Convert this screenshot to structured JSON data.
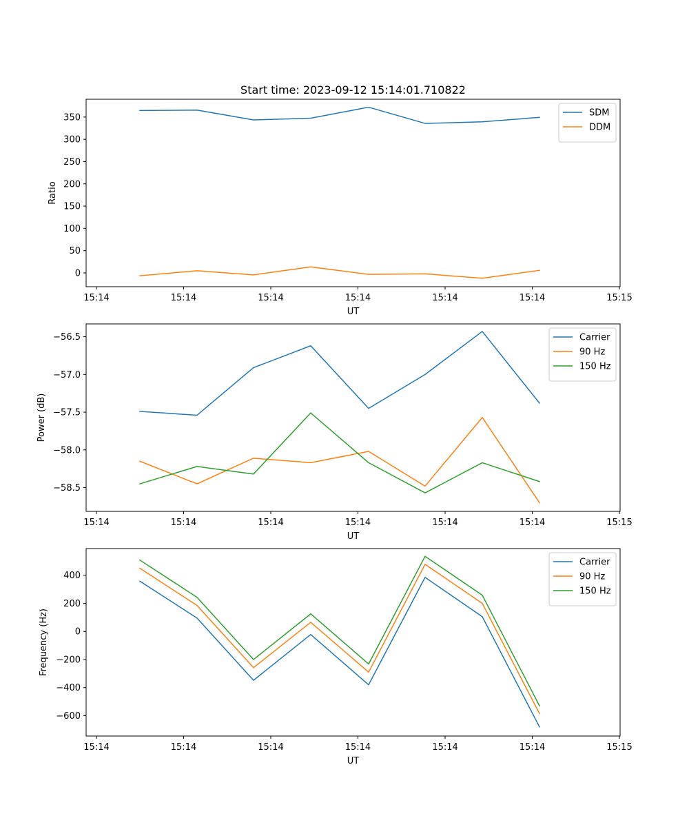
{
  "title": "Start time: 2023-09-12 15:14:01.710822",
  "chart_data": [
    {
      "type": "line",
      "title": "Start time: 2023-09-12 15:14:01.710822",
      "xlabel": "UT",
      "ylabel": "Ratio",
      "x_ticks": [
        "15:14",
        "15:14",
        "15:14",
        "15:14",
        "15:14",
        "15:14",
        "15:15"
      ],
      "y_ticks": [
        "0",
        "50",
        "100",
        "150",
        "200",
        "250",
        "300",
        "350"
      ],
      "ylim": [
        -31,
        390
      ],
      "y_tick_values": [
        0,
        50,
        100,
        150,
        200,
        250,
        300,
        350
      ],
      "series": [
        {
          "name": "SDM",
          "color": "#1f77b4",
          "values": [
            364.6,
            365.6,
            343.6,
            347.4,
            372.1,
            335.7,
            339.3,
            349.3
          ]
        },
        {
          "name": "DDM",
          "color": "#ff7f0e",
          "values": [
            -6.4,
            4.8,
            -4.5,
            13.5,
            -3.3,
            -2.1,
            -12.0,
            5.7
          ]
        }
      ]
    },
    {
      "type": "line",
      "title": "",
      "xlabel": "UT",
      "ylabel": "Power (dB)",
      "x_ticks": [
        "15:14",
        "15:14",
        "15:14",
        "15:14",
        "15:14",
        "15:14",
        "15:15"
      ],
      "y_ticks": [
        "−58.5",
        "−58.0",
        "−57.5",
        "−57.0",
        "−56.5"
      ],
      "ylim": [
        -58.815,
        -56.33
      ],
      "y_tick_values": [
        -58.5,
        -58.0,
        -57.5,
        -57.0,
        -56.5
      ],
      "series": [
        {
          "name": "Carrier",
          "color": "#1f77b4",
          "values": [
            -57.49,
            -57.54,
            -56.91,
            -56.62,
            -57.45,
            -57.0,
            -56.43,
            -57.38
          ]
        },
        {
          "name": "90 Hz",
          "color": "#ff7f0e",
          "values": [
            -58.15,
            -58.45,
            -58.11,
            -58.17,
            -58.02,
            -58.48,
            -57.57,
            -58.7
          ]
        },
        {
          "name": "150 Hz",
          "color": "#2ca02c",
          "values": [
            -58.45,
            -58.22,
            -58.32,
            -57.51,
            -58.17,
            -58.57,
            -58.17,
            -58.42
          ]
        }
      ]
    },
    {
      "type": "line",
      "title": "",
      "xlabel": "UT",
      "ylabel": "Frequency (Hz)",
      "x_ticks": [
        "15:14",
        "15:14",
        "15:14",
        "15:14",
        "15:14",
        "15:14",
        "15:15"
      ],
      "y_ticks": [
        "−600",
        "−400",
        "−200",
        "0",
        "200",
        "400"
      ],
      "ylim": [
        -745,
        590
      ],
      "y_tick_values": [
        -600,
        -400,
        -200,
        0,
        200,
        400
      ],
      "series": [
        {
          "name": "Carrier",
          "color": "#1f77b4",
          "values": [
            358,
            95,
            -348,
            -22,
            -380,
            385,
            105,
            -680
          ]
        },
        {
          "name": "90 Hz",
          "color": "#ff7f0e",
          "values": [
            450,
            185,
            -258,
            65,
            -290,
            478,
            200,
            -585
          ]
        },
        {
          "name": "150 Hz",
          "color": "#2ca02c",
          "values": [
            508,
            243,
            -200,
            125,
            -232,
            535,
            258,
            -530
          ]
        }
      ]
    }
  ]
}
